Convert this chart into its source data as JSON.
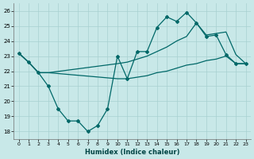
{
  "bg_color": "#c8e8e8",
  "grid_color": "#a8d0d0",
  "line_color": "#006868",
  "xlabel": "Humidex (Indice chaleur)",
  "xlim": [
    -0.5,
    23.5
  ],
  "ylim": [
    17.5,
    26.5
  ],
  "yticks": [
    18,
    19,
    20,
    21,
    22,
    23,
    24,
    25,
    26
  ],
  "xticks": [
    0,
    1,
    2,
    3,
    4,
    5,
    6,
    7,
    8,
    9,
    10,
    11,
    12,
    13,
    14,
    15,
    16,
    17,
    18,
    19,
    20,
    21,
    22,
    23
  ],
  "line_zigzag_x": [
    0,
    1,
    2,
    3,
    4,
    5,
    6,
    7,
    8,
    9,
    10,
    11,
    12,
    13,
    14,
    15,
    16,
    17,
    18,
    19,
    20,
    21,
    22,
    23
  ],
  "line_zigzag_y": [
    23.2,
    22.6,
    21.9,
    21.0,
    19.5,
    18.7,
    18.7,
    18.0,
    18.4,
    19.5,
    23.0,
    21.5,
    23.3,
    23.3,
    24.9,
    25.6,
    25.3,
    25.9,
    25.2,
    24.3,
    24.4,
    23.1,
    22.5,
    22.5
  ],
  "line_upper_x": [
    0,
    1,
    2,
    3,
    10,
    11,
    12,
    13,
    14,
    15,
    16,
    17,
    18,
    19,
    20,
    21,
    22,
    23
  ],
  "line_upper_y": [
    23.2,
    22.6,
    21.9,
    21.9,
    22.5,
    22.6,
    22.8,
    23.0,
    23.3,
    23.6,
    24.0,
    24.3,
    25.2,
    24.4,
    24.5,
    24.6,
    23.1,
    22.5
  ],
  "line_lower_x": [
    0,
    1,
    2,
    3,
    10,
    11,
    12,
    13,
    14,
    15,
    16,
    17,
    18,
    19,
    20,
    21,
    22,
    23
  ],
  "line_lower_y": [
    23.2,
    22.6,
    21.9,
    21.9,
    21.5,
    21.5,
    21.6,
    21.7,
    21.9,
    22.0,
    22.2,
    22.4,
    22.5,
    22.7,
    22.8,
    23.0,
    22.5,
    22.5
  ]
}
